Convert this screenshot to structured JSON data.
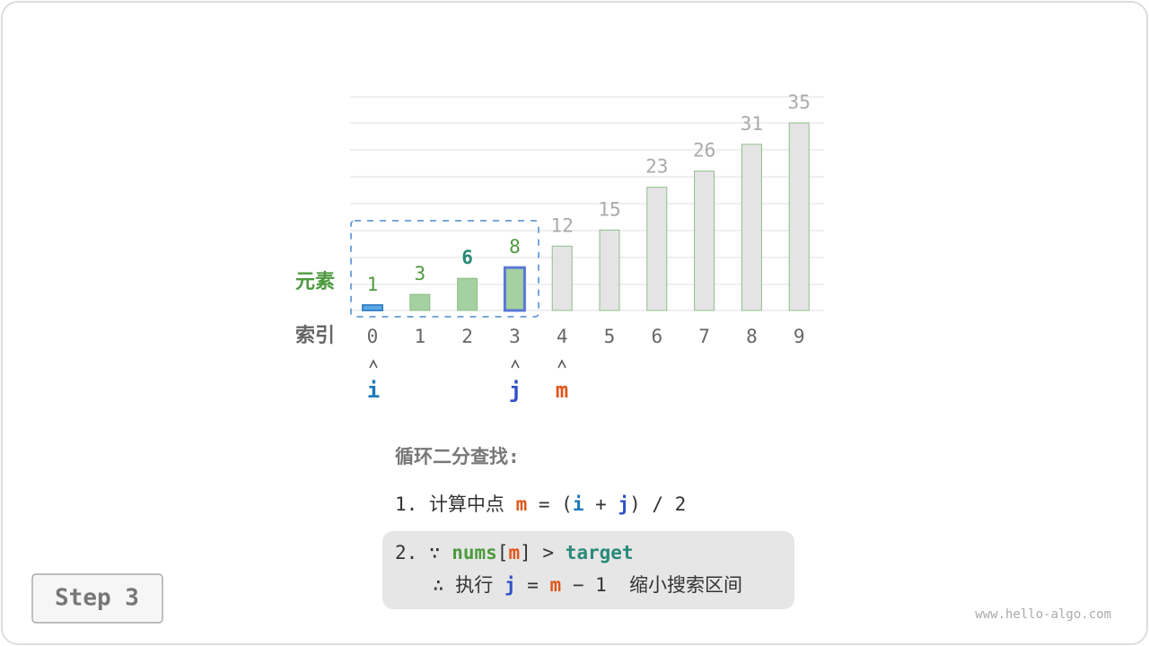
{
  "array": {
    "value_label": "元素",
    "index_label": "索引",
    "values": [
      1,
      3,
      6,
      8,
      12,
      15,
      23,
      26,
      31,
      35
    ],
    "indices": [
      0,
      1,
      2,
      3,
      4,
      5,
      6,
      7,
      8,
      9
    ]
  },
  "pointers": [
    "i",
    "j",
    "m"
  ],
  "steps": {
    "title": "循环二分查找:",
    "line1": [
      "1. 计算中点 ",
      "m",
      " = (",
      "i",
      " + ",
      "j",
      ") / 2"
    ],
    "line2": [
      "2. ∵ ",
      "nums",
      "[",
      "m",
      "] > ",
      "target"
    ],
    "line3": [
      "∴ 执行 ",
      "j",
      " = ",
      "m",
      " − 1  缩小搜索区间"
    ]
  },
  "button": "Step 3",
  "footer": "www.hello-algo.com"
}
